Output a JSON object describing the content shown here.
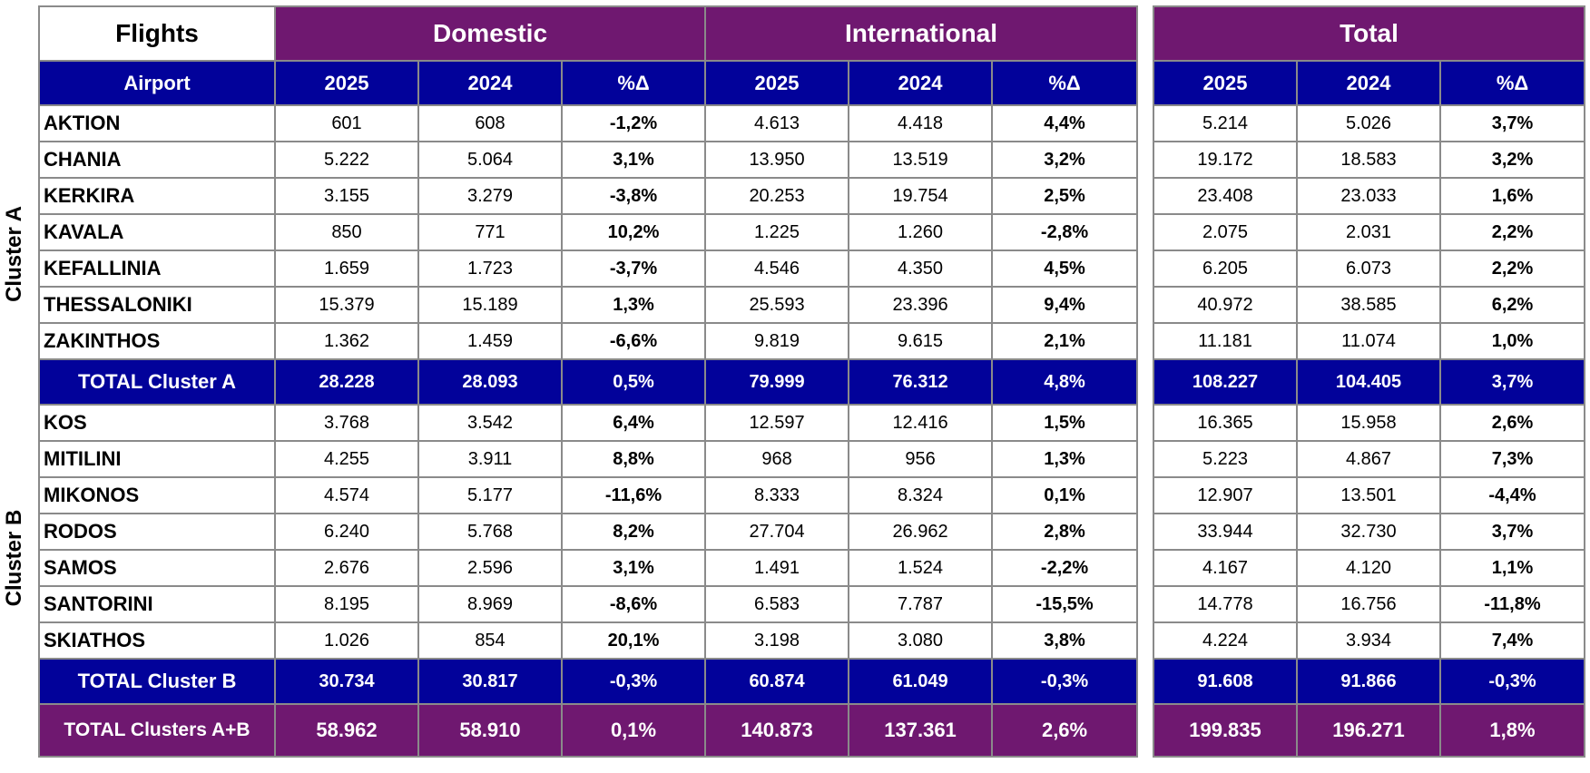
{
  "header": {
    "flights": "Flights",
    "domestic": "Domestic",
    "international": "International",
    "total": "Total",
    "airport": "Airport",
    "y2025": "2025",
    "y2024": "2024",
    "pct": "%Δ"
  },
  "clusters": [
    {
      "label": "Cluster A",
      "rows": [
        {
          "name": "AKTION",
          "d25": "601",
          "d24": "608",
          "dp": "-1,2%",
          "i25": "4.613",
          "i24": "4.418",
          "ip": "4,4%",
          "t25": "5.214",
          "t24": "5.026",
          "tp": "3,7%"
        },
        {
          "name": "CHANIA",
          "d25": "5.222",
          "d24": "5.064",
          "dp": "3,1%",
          "i25": "13.950",
          "i24": "13.519",
          "ip": "3,2%",
          "t25": "19.172",
          "t24": "18.583",
          "tp": "3,2%"
        },
        {
          "name": "KERKIRA",
          "d25": "3.155",
          "d24": "3.279",
          "dp": "-3,8%",
          "i25": "20.253",
          "i24": "19.754",
          "ip": "2,5%",
          "t25": "23.408",
          "t24": "23.033",
          "tp": "1,6%"
        },
        {
          "name": "KAVALA",
          "d25": "850",
          "d24": "771",
          "dp": "10,2%",
          "i25": "1.225",
          "i24": "1.260",
          "ip": "-2,8%",
          "t25": "2.075",
          "t24": "2.031",
          "tp": "2,2%"
        },
        {
          "name": "KEFALLINIA",
          "d25": "1.659",
          "d24": "1.723",
          "dp": "-3,7%",
          "i25": "4.546",
          "i24": "4.350",
          "ip": "4,5%",
          "t25": "6.205",
          "t24": "6.073",
          "tp": "2,2%"
        },
        {
          "name": "THESSALONIKI",
          "d25": "15.379",
          "d24": "15.189",
          "dp": "1,3%",
          "i25": "25.593",
          "i24": "23.396",
          "ip": "9,4%",
          "t25": "40.972",
          "t24": "38.585",
          "tp": "6,2%"
        },
        {
          "name": "ZAKINTHOS",
          "d25": "1.362",
          "d24": "1.459",
          "dp": "-6,6%",
          "i25": "9.819",
          "i24": "9.615",
          "ip": "2,1%",
          "t25": "11.181",
          "t24": "11.074",
          "tp": "1,0%"
        }
      ],
      "total": {
        "name": "TOTAL Cluster A",
        "d25": "28.228",
        "d24": "28.093",
        "dp": "0,5%",
        "i25": "79.999",
        "i24": "76.312",
        "ip": "4,8%",
        "t25": "108.227",
        "t24": "104.405",
        "tp": "3,7%"
      }
    },
    {
      "label": "Cluster B",
      "rows": [
        {
          "name": "KOS",
          "d25": "3.768",
          "d24": "3.542",
          "dp": "6,4%",
          "i25": "12.597",
          "i24": "12.416",
          "ip": "1,5%",
          "t25": "16.365",
          "t24": "15.958",
          "tp": "2,6%"
        },
        {
          "name": "MITILINI",
          "d25": "4.255",
          "d24": "3.911",
          "dp": "8,8%",
          "i25": "968",
          "i24": "956",
          "ip": "1,3%",
          "t25": "5.223",
          "t24": "4.867",
          "tp": "7,3%"
        },
        {
          "name": "MIKONOS",
          "d25": "4.574",
          "d24": "5.177",
          "dp": "-11,6%",
          "i25": "8.333",
          "i24": "8.324",
          "ip": "0,1%",
          "t25": "12.907",
          "t24": "13.501",
          "tp": "-4,4%"
        },
        {
          "name": "RODOS",
          "d25": "6.240",
          "d24": "5.768",
          "dp": "8,2%",
          "i25": "27.704",
          "i24": "26.962",
          "ip": "2,8%",
          "t25": "33.944",
          "t24": "32.730",
          "tp": "3,7%"
        },
        {
          "name": "SAMOS",
          "d25": "2.676",
          "d24": "2.596",
          "dp": "3,1%",
          "i25": "1.491",
          "i24": "1.524",
          "ip": "-2,2%",
          "t25": "4.167",
          "t24": "4.120",
          "tp": "1,1%"
        },
        {
          "name": "SANTORINI",
          "d25": "8.195",
          "d24": "8.969",
          "dp": "-8,6%",
          "i25": "6.583",
          "i24": "7.787",
          "ip": "-15,5%",
          "t25": "14.778",
          "t24": "16.756",
          "tp": "-11,8%"
        },
        {
          "name": "SKIATHOS",
          "d25": "1.026",
          "d24": "854",
          "dp": "20,1%",
          "i25": "3.198",
          "i24": "3.080",
          "ip": "3,8%",
          "t25": "4.224",
          "t24": "3.934",
          "tp": "7,4%"
        }
      ],
      "total": {
        "name": "TOTAL Cluster B",
        "d25": "30.734",
        "d24": "30.817",
        "dp": "-0,3%",
        "i25": "60.874",
        "i24": "61.049",
        "ip": "-0,3%",
        "t25": "91.608",
        "t24": "91.866",
        "tp": "-0,3%"
      }
    }
  ],
  "grand_total": {
    "name": "TOTAL Clusters A+B",
    "d25": "58.962",
    "d24": "58.910",
    "dp": "0,1%",
    "i25": "140.873",
    "i24": "137.361",
    "ip": "2,6%",
    "t25": "199.835",
    "t24": "196.271",
    "tp": "1,8%"
  },
  "colors": {
    "purple": "#6f1870",
    "blue": "#02029a",
    "border": "#8a8a8a"
  }
}
